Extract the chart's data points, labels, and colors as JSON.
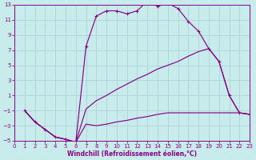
{
  "xlabel": "Windchill (Refroidissement éolien,°C)",
  "line_color": "#880088",
  "bg_color": "#c8ecec",
  "grid_color": "#b0d8d8",
  "xmin": 0,
  "xmax": 23,
  "ymin": -5,
  "ymax": 13,
  "yticks": [
    -5,
    -3,
    -1,
    1,
    3,
    5,
    7,
    9,
    11,
    13
  ],
  "xticks": [
    0,
    1,
    2,
    3,
    4,
    5,
    6,
    7,
    8,
    9,
    10,
    11,
    12,
    13,
    14,
    15,
    16,
    17,
    18,
    19,
    20,
    21,
    22,
    23
  ],
  "lines": [
    {
      "x": [
        1,
        2,
        3,
        4,
        5,
        6,
        7,
        8,
        9,
        10,
        11,
        12,
        13,
        14,
        15,
        16,
        17,
        18,
        19,
        20,
        21,
        22,
        23
      ],
      "y": [
        -1,
        -2.5,
        -3.5,
        -4.5,
        -4.8,
        -5.2,
        7.5,
        11.5,
        12.2,
        12.2,
        11.8,
        12.2,
        13.5,
        12.8,
        13.2,
        12.5,
        10.8,
        9.5,
        7.2,
        5.5,
        1.0,
        -1.3,
        -1.5
      ],
      "marker": "+"
    },
    {
      "x": [
        1,
        2,
        3,
        4,
        5,
        6,
        7,
        8,
        9,
        10,
        11,
        12,
        13,
        14,
        15,
        16,
        17,
        18,
        19,
        20,
        21,
        22,
        23
      ],
      "y": [
        -1,
        -2.5,
        -3.5,
        -4.5,
        -4.8,
        -5.2,
        -0.8,
        0.3,
        1.0,
        1.8,
        2.5,
        3.2,
        3.8,
        4.5,
        5.0,
        5.5,
        6.2,
        6.8,
        7.2,
        5.5,
        1.0,
        -1.3,
        -1.5
      ],
      "marker": null
    },
    {
      "x": [
        1,
        2,
        3,
        4,
        5,
        6,
        7,
        8,
        9,
        10,
        11,
        12,
        13,
        14,
        15,
        16,
        17,
        18,
        19,
        20,
        21,
        22,
        23
      ],
      "y": [
        -1,
        -2.5,
        -3.5,
        -4.5,
        -4.8,
        -5.2,
        -2.8,
        -3.0,
        -2.8,
        -2.5,
        -2.3,
        -2.0,
        -1.8,
        -1.5,
        -1.3,
        -1.3,
        -1.3,
        -1.3,
        -1.3,
        -1.3,
        -1.3,
        -1.3,
        -1.5
      ],
      "marker": null
    }
  ]
}
